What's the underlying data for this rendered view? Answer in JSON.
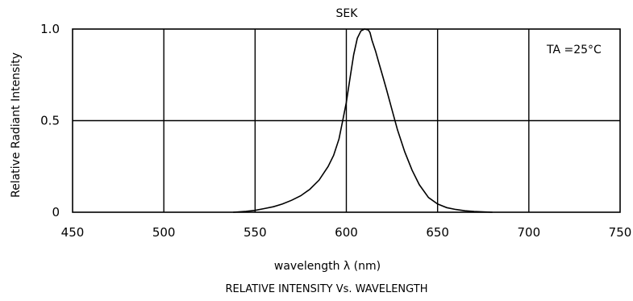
{
  "chart_data": {
    "type": "line",
    "title": "SEK",
    "xlabel": "wavelength λ (nm)",
    "ylabel": "Relative Radiant Intensity",
    "caption": "RELATIVE INTENSITY Vs. WAVELENGTH",
    "annotation": "TA =25°C",
    "xlim": [
      450,
      750
    ],
    "ylim": [
      0,
      1.0
    ],
    "x_ticks": [
      450,
      500,
      550,
      600,
      650,
      700,
      750
    ],
    "x_tick_labels": [
      "450",
      "500",
      "550",
      "600",
      "650",
      "700",
      "750"
    ],
    "y_ticks": [
      0,
      0.5,
      1.0
    ],
    "y_tick_labels": [
      "0",
      "0.5",
      "1.0"
    ],
    "grid": true,
    "series": [
      {
        "x": [
          538,
          545,
          550,
          555,
          560,
          565,
          570,
          575,
          580,
          585,
          590,
          593,
          596,
          598,
          600,
          602,
          604,
          606,
          608,
          610,
          612,
          613,
          614,
          616,
          618,
          620,
          622,
          625,
          628,
          632,
          636,
          640,
          645,
          650,
          655,
          660,
          665,
          670,
          675,
          680
        ],
        "y": [
          0.0,
          0.005,
          0.01,
          0.02,
          0.03,
          0.045,
          0.065,
          0.09,
          0.125,
          0.175,
          0.25,
          0.31,
          0.4,
          0.5,
          0.6,
          0.73,
          0.86,
          0.95,
          0.99,
          1.0,
          0.995,
          0.98,
          0.94,
          0.88,
          0.81,
          0.74,
          0.67,
          0.56,
          0.45,
          0.33,
          0.23,
          0.15,
          0.08,
          0.045,
          0.025,
          0.015,
          0.008,
          0.004,
          0.002,
          0.0
        ]
      }
    ]
  }
}
